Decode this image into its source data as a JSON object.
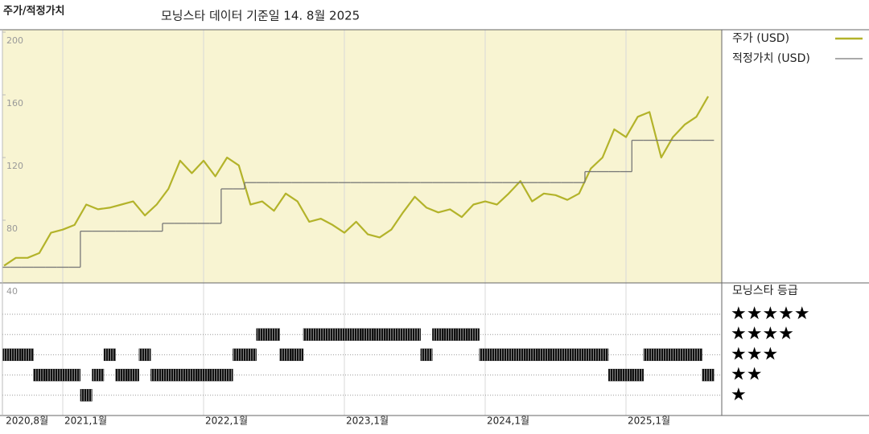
{
  "chart_data": [
    {
      "type": "line",
      "title": "주가/적정가치",
      "subtitle": "모닝스타 데이터 기준일 14. 8월 2025",
      "x": [
        "2020-08",
        "2020-09",
        "2020-10",
        "2020-11",
        "2020-12",
        "2021-01",
        "2021-02",
        "2021-03",
        "2021-04",
        "2021-05",
        "2021-06",
        "2021-07",
        "2021-08",
        "2021-09",
        "2021-10",
        "2021-11",
        "2021-12",
        "2022-01",
        "2022-02",
        "2022-03",
        "2022-04",
        "2022-05",
        "2022-06",
        "2022-07",
        "2022-08",
        "2022-09",
        "2022-10",
        "2022-11",
        "2022-12",
        "2023-01",
        "2023-02",
        "2023-03",
        "2023-04",
        "2023-05",
        "2023-06",
        "2023-07",
        "2023-08",
        "2023-09",
        "2023-10",
        "2023-11",
        "2023-12",
        "2024-01",
        "2024-02",
        "2024-03",
        "2024-04",
        "2024-05",
        "2024-06",
        "2024-07",
        "2024-08",
        "2024-09",
        "2024-10",
        "2024-11",
        "2024-12",
        "2025-01",
        "2025-02",
        "2025-03",
        "2025-04",
        "2025-05",
        "2025-06",
        "2025-07",
        "2025-08"
      ],
      "xticks": [
        {
          "value": "2020-08",
          "label": "2020,8월"
        },
        {
          "value": "2021-01",
          "label": "2021,1월"
        },
        {
          "value": "2022-01",
          "label": "2022,1월"
        },
        {
          "value": "2023-01",
          "label": "2023,1월"
        },
        {
          "value": "2024-01",
          "label": "2024,1월"
        },
        {
          "value": "2025-01",
          "label": "2025,1월"
        }
      ],
      "ylim": [
        40,
        200
      ],
      "yticks": [
        40,
        80,
        120,
        160,
        200
      ],
      "series": [
        {
          "name": "주가 (USD)",
          "color": "#b3b32a",
          "values": [
            51,
            56,
            56,
            59,
            72,
            74,
            77,
            90,
            87,
            88,
            90,
            92,
            83,
            90,
            100,
            118,
            110,
            118,
            108,
            120,
            115,
            90,
            92,
            86,
            97,
            92,
            79,
            81,
            77,
            72,
            79,
            71,
            69,
            74,
            85,
            95,
            88,
            85,
            87,
            82,
            90,
            92,
            90,
            97,
            105,
            92,
            97,
            96,
            93,
            97,
            113,
            120,
            138,
            133,
            146,
            149,
            120,
            133,
            141,
            146,
            159
          ]
        },
        {
          "name": "적정가치 (USD)",
          "color": "#777777",
          "step": true,
          "values": [
            50,
            50,
            50,
            50,
            50,
            50,
            50,
            73,
            73,
            73,
            73,
            73,
            73,
            73,
            78,
            78,
            78,
            78,
            78,
            100,
            100,
            104,
            104,
            104,
            104,
            104,
            104,
            104,
            104,
            104,
            104,
            104,
            104,
            104,
            104,
            104,
            104,
            104,
            104,
            104,
            104,
            104,
            104,
            104,
            104,
            104,
            104,
            104,
            104,
            104,
            111,
            111,
            111,
            111,
            131,
            131,
            131,
            131,
            131,
            131,
            131
          ]
        }
      ]
    },
    {
      "type": "rating",
      "title": "모닝스타 등급",
      "color": "#000000",
      "yticks": [
        {
          "value": 5,
          "label": "★★★★★"
        },
        {
          "value": 4,
          "label": "★★★★"
        },
        {
          "value": 3,
          "label": "★★★"
        },
        {
          "value": 2,
          "label": "★★"
        },
        {
          "value": 1,
          "label": "★"
        }
      ],
      "values": [
        3,
        3,
        3,
        2,
        2,
        2,
        2,
        1,
        2,
        3,
        2,
        2,
        3,
        2,
        2,
        2,
        2,
        2,
        2,
        2,
        3,
        3,
        4,
        4,
        3,
        3,
        4,
        4,
        4,
        4,
        4,
        4,
        4,
        4,
        4,
        4,
        3,
        4,
        4,
        4,
        4,
        3,
        3,
        3,
        3,
        3,
        3,
        3,
        3,
        3,
        3,
        3,
        2,
        2,
        2,
        3,
        3,
        3,
        3,
        3,
        2
      ]
    }
  ]
}
